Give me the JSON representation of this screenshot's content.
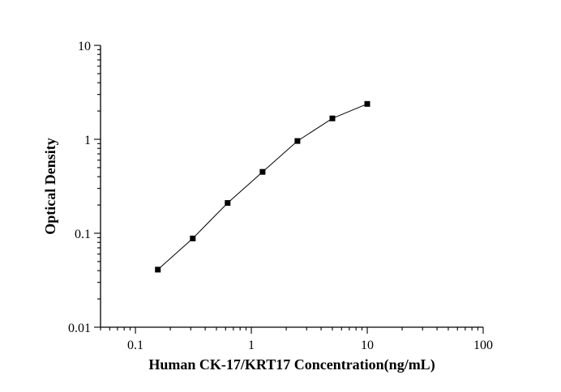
{
  "chart_data": {
    "type": "scatter",
    "title": "",
    "xlabel": "Human CK-17/KRT17 Concentration(ng/mL)",
    "ylabel": "Optical Density",
    "xscale": "log",
    "yscale": "log",
    "xlim": [
      0.05,
      100
    ],
    "ylim": [
      0.01,
      10
    ],
    "x_ticks": [
      0.1,
      1,
      10,
      100
    ],
    "x_tick_labels": [
      "0.1",
      "1",
      "10",
      "100"
    ],
    "y_ticks": [
      0.01,
      0.1,
      1,
      10
    ],
    "y_tick_labels": [
      "0.01",
      "0.1",
      "1",
      "10"
    ],
    "grid": false,
    "series": [
      {
        "x": [
          0.156,
          0.3125,
          0.625,
          1.25,
          2.5,
          5,
          10
        ],
        "y": [
          0.041,
          0.088,
          0.21,
          0.45,
          0.96,
          1.67,
          2.38
        ],
        "marker": "square",
        "line": true,
        "color": "#000000"
      }
    ]
  }
}
